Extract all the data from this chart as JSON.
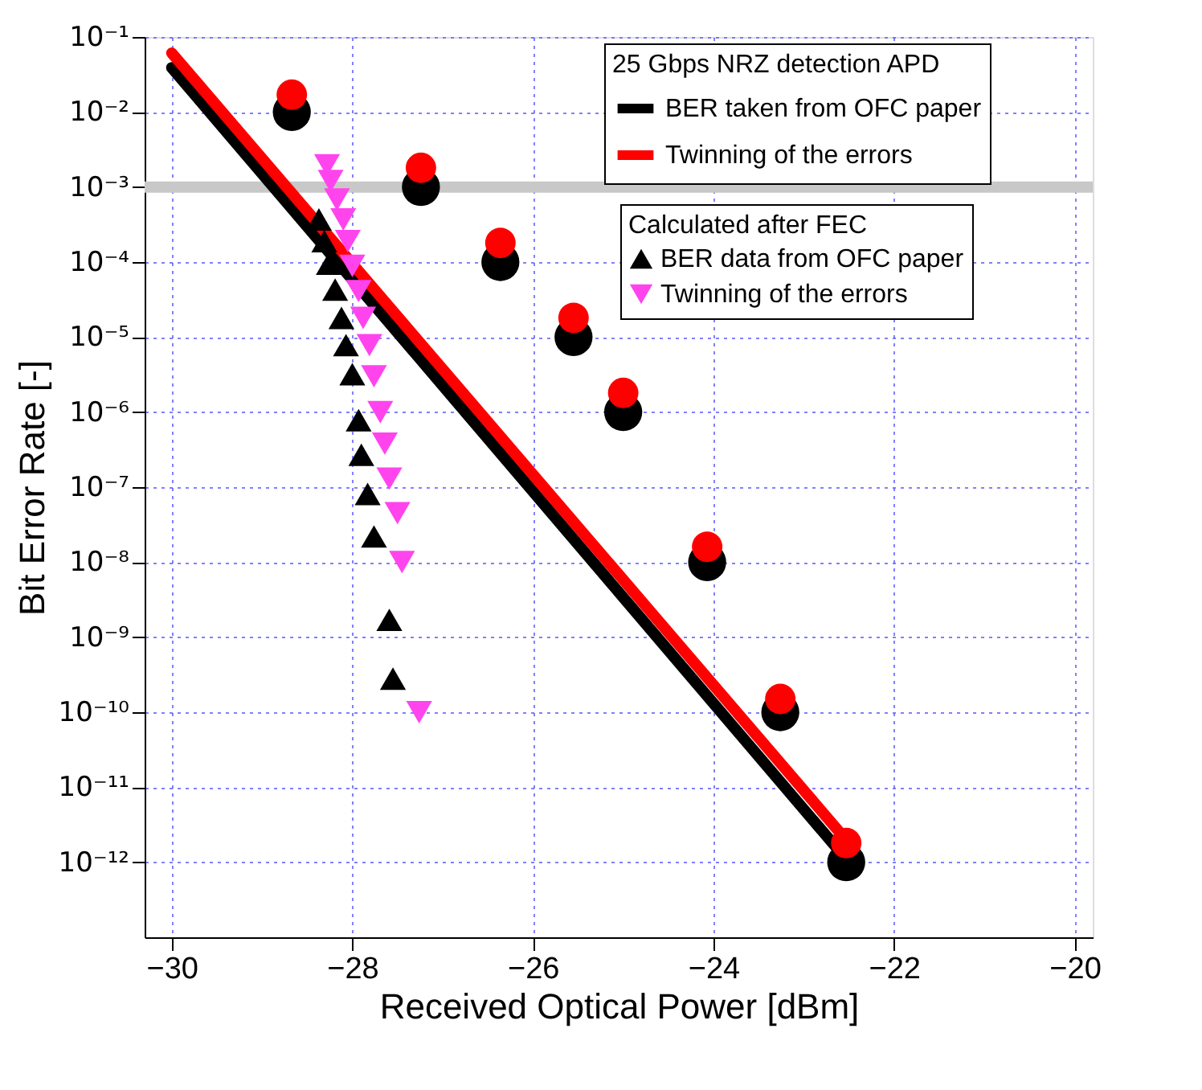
{
  "chart_data": {
    "type": "scatter",
    "xlabel": "Received Optical Power [dBm]",
    "ylabel": "Bit Error Rate  [-]",
    "legend_title": "25 Gbps NRZ detection APD",
    "annotations": [
      "Calculated after FEC"
    ],
    "log": "y",
    "grid": true,
    "legend": "top right",
    "xlim": [
      -30.3,
      -19.8
    ],
    "xticks": [
      -30,
      -28,
      -26,
      -24,
      -22,
      -20
    ],
    "ylim": [
      1e-13,
      0.1
    ],
    "yticks": [
      {
        "value": 0.1,
        "label": "10⁻¹"
      },
      {
        "value": 0.01,
        "label": "10⁻²"
      },
      {
        "value": 0.001,
        "label": "10⁻³"
      },
      {
        "value": 0.0001,
        "label": "10⁻⁴"
      },
      {
        "value": 1e-05,
        "label": "10⁻⁵"
      },
      {
        "value": 1e-06,
        "label": "10⁻⁶"
      },
      {
        "value": 1e-07,
        "label": "10⁻⁷"
      },
      {
        "value": 1e-08,
        "label": "10⁻⁸"
      },
      {
        "value": 1e-09,
        "label": "10⁻⁹"
      },
      {
        "value": 1e-10,
        "label": "10⁻¹⁰"
      },
      {
        "value": 1e-11,
        "label": "10⁻¹¹"
      },
      {
        "value": 1e-12,
        "label": "10⁻¹²"
      }
    ],
    "ref_lines": [
      {
        "axis": "y",
        "value": 0.001,
        "color": "#c8c8c8"
      }
    ],
    "series": [
      {
        "type": "line",
        "name": "BER taken from OFC paper",
        "color": "#000000",
        "marker": "none",
        "x": [
          -30,
          -22.5
        ],
        "values": [
          0.039,
          1e-12
        ]
      },
      {
        "type": "line",
        "name": "Twinning of the errors",
        "color": "#ff0000",
        "marker": "none",
        "x": [
          -30,
          -22.5
        ],
        "values": [
          0.061,
          1.8e-12
        ]
      },
      {
        "color": "#000000",
        "marker": "circle",
        "x": [
          -28.67,
          -27.24,
          -26.36,
          -25.55,
          -25.0,
          -24.07,
          -23.26,
          -22.53
        ],
        "values": [
          0.01,
          0.001,
          0.0001,
          1e-05,
          1e-06,
          1e-08,
          1e-10,
          1e-12
        ]
      },
      {
        "color": "#ff0000",
        "marker": "circle",
        "x": [
          -28.67,
          -27.24,
          -26.36,
          -25.55,
          -25.0,
          -24.07,
          -23.26,
          -22.53
        ],
        "values": [
          0.017,
          0.0018,
          0.00018,
          1.8e-05,
          1.8e-06,
          1.6e-08,
          1.5e-10,
          1.8e-12
        ]
      },
      {
        "name": "BER data from OFC paper",
        "color": "#000000",
        "marker": "triangle",
        "x": [
          -28.37,
          -28.31,
          -28.26,
          -28.19,
          -28.12,
          -28.07,
          -28.0,
          -27.93,
          -27.9,
          -27.83,
          -27.76,
          -27.59,
          -27.55
        ],
        "values": [
          0.00037,
          0.00019,
          9.5e-05,
          4.3e-05,
          1.8e-05,
          7.8e-06,
          3.2e-06,
          7.8e-07,
          2.7e-07,
          8.1e-08,
          2.2e-08,
          1.7e-09,
          2.8e-10
        ]
      },
      {
        "name": "Twinning of the errors",
        "color": "#ff44ee",
        "marker": "triangle-down",
        "x": [
          -28.28,
          -28.24,
          -28.17,
          -28.1,
          -28.05,
          -28.0,
          -27.93,
          -27.88,
          -27.81,
          -27.76,
          -27.69,
          -27.64,
          -27.59,
          -27.5,
          -27.45,
          -27.26
        ],
        "values": [
          0.00195,
          0.0012,
          0.00068,
          0.00037,
          0.00019,
          8.9e-05,
          4.1e-05,
          1.8e-05,
          7.8e-06,
          3e-06,
          1e-06,
          3.8e-07,
          1.3e-07,
          4.5e-08,
          1e-08,
          1e-10
        ]
      }
    ]
  }
}
